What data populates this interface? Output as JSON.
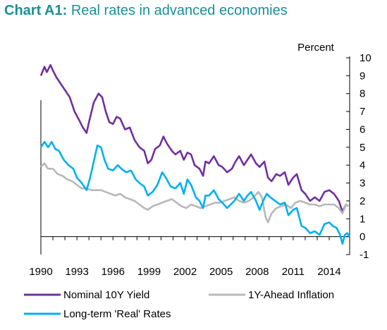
{
  "title": {
    "lead": "Chart A1:",
    "rest": "Real rates in advanced economies"
  },
  "chart_data": {
    "type": "line",
    "unit_label": "Percent",
    "x_range": [
      1990,
      2015.7
    ],
    "x_ticks": [
      "1990",
      "1993",
      "1996",
      "1999",
      "2002",
      "2005",
      "2008",
      "2011",
      "2014"
    ],
    "y_range": [
      -1,
      10
    ],
    "y_ticks": [
      "10",
      "9",
      "8",
      "7",
      "6",
      "5",
      "4",
      "3",
      "2",
      "1",
      "0",
      "-1"
    ],
    "y_axis_side": "right",
    "grid": false,
    "legend_position": "bottom",
    "series": [
      {
        "name": "Nominal 10Y Yield",
        "color": "#7030a0",
        "points": [
          [
            1990.0,
            9.0
          ],
          [
            1990.3,
            9.5
          ],
          [
            1990.5,
            9.2
          ],
          [
            1990.8,
            9.6
          ],
          [
            1991.0,
            9.3
          ],
          [
            1991.3,
            8.9
          ],
          [
            1991.6,
            8.6
          ],
          [
            1992.0,
            8.2
          ],
          [
            1992.4,
            7.8
          ],
          [
            1992.8,
            7.0
          ],
          [
            1993.2,
            6.5
          ],
          [
            1993.5,
            6.1
          ],
          [
            1993.8,
            5.8
          ],
          [
            1994.0,
            6.4
          ],
          [
            1994.4,
            7.5
          ],
          [
            1994.8,
            8.0
          ],
          [
            1995.1,
            7.8
          ],
          [
            1995.4,
            7.0
          ],
          [
            1995.7,
            6.4
          ],
          [
            1996.0,
            6.3
          ],
          [
            1996.3,
            6.7
          ],
          [
            1996.6,
            6.6
          ],
          [
            1997.0,
            6.0
          ],
          [
            1997.4,
            6.1
          ],
          [
            1997.8,
            5.4
          ],
          [
            1998.2,
            5.0
          ],
          [
            1998.6,
            4.8
          ],
          [
            1998.9,
            4.1
          ],
          [
            1999.2,
            4.3
          ],
          [
            1999.5,
            4.9
          ],
          [
            1999.9,
            5.1
          ],
          [
            2000.2,
            5.6
          ],
          [
            2000.5,
            5.2
          ],
          [
            2000.9,
            4.8
          ],
          [
            2001.2,
            4.6
          ],
          [
            2001.6,
            4.8
          ],
          [
            2001.9,
            4.3
          ],
          [
            2002.2,
            4.7
          ],
          [
            2002.5,
            4.6
          ],
          [
            2002.8,
            4.0
          ],
          [
            2003.2,
            3.8
          ],
          [
            2003.5,
            3.4
          ],
          [
            2003.7,
            4.2
          ],
          [
            2004.0,
            4.1
          ],
          [
            2004.4,
            4.5
          ],
          [
            2004.8,
            4.0
          ],
          [
            2005.1,
            3.9
          ],
          [
            2005.5,
            3.6
          ],
          [
            2005.9,
            3.8
          ],
          [
            2006.2,
            4.2
          ],
          [
            2006.5,
            4.5
          ],
          [
            2006.9,
            4.0
          ],
          [
            2007.2,
            4.3
          ],
          [
            2007.5,
            4.6
          ],
          [
            2007.9,
            4.1
          ],
          [
            2008.2,
            3.9
          ],
          [
            2008.6,
            4.2
          ],
          [
            2008.9,
            3.3
          ],
          [
            2009.2,
            3.1
          ],
          [
            2009.6,
            3.5
          ],
          [
            2009.9,
            3.4
          ],
          [
            2010.3,
            3.6
          ],
          [
            2010.6,
            2.9
          ],
          [
            2011.0,
            3.3
          ],
          [
            2011.3,
            3.5
          ],
          [
            2011.7,
            2.6
          ],
          [
            2012.0,
            2.4
          ],
          [
            2012.4,
            2.0
          ],
          [
            2012.8,
            2.2
          ],
          [
            2013.2,
            2.0
          ],
          [
            2013.6,
            2.5
          ],
          [
            2014.0,
            2.6
          ],
          [
            2014.4,
            2.4
          ],
          [
            2014.8,
            2.0
          ],
          [
            2015.1,
            1.4
          ],
          [
            2015.4,
            1.8
          ],
          [
            2015.6,
            1.7
          ]
        ]
      },
      {
        "name": "1Y-Ahead Inflation",
        "color": "#b8b8b8",
        "points": [
          [
            1990.0,
            3.9
          ],
          [
            1990.3,
            4.1
          ],
          [
            1990.6,
            3.8
          ],
          [
            1991.0,
            3.8
          ],
          [
            1991.4,
            3.5
          ],
          [
            1991.8,
            3.4
          ],
          [
            1992.2,
            3.2
          ],
          [
            1992.6,
            3.1
          ],
          [
            1993.0,
            2.9
          ],
          [
            1993.4,
            2.7
          ],
          [
            1993.8,
            2.7
          ],
          [
            1994.2,
            2.6
          ],
          [
            1994.6,
            2.6
          ],
          [
            1995.0,
            2.6
          ],
          [
            1995.4,
            2.5
          ],
          [
            1995.8,
            2.4
          ],
          [
            1996.2,
            2.3
          ],
          [
            1996.6,
            2.4
          ],
          [
            1997.0,
            2.2
          ],
          [
            1997.4,
            2.1
          ],
          [
            1997.8,
            2.0
          ],
          [
            1998.2,
            1.8
          ],
          [
            1998.6,
            1.6
          ],
          [
            1998.9,
            1.5
          ],
          [
            1999.3,
            1.7
          ],
          [
            1999.7,
            1.8
          ],
          [
            2000.1,
            1.9
          ],
          [
            2000.5,
            2.0
          ],
          [
            2000.9,
            2.1
          ],
          [
            2001.3,
            1.9
          ],
          [
            2001.7,
            1.7
          ],
          [
            2002.1,
            1.6
          ],
          [
            2002.5,
            1.8
          ],
          [
            2002.9,
            1.7
          ],
          [
            2003.3,
            1.6
          ],
          [
            2003.7,
            1.7
          ],
          [
            2004.1,
            1.8
          ],
          [
            2004.5,
            1.9
          ],
          [
            2004.9,
            1.9
          ],
          [
            2005.3,
            2.0
          ],
          [
            2005.7,
            2.1
          ],
          [
            2006.1,
            2.2
          ],
          [
            2006.5,
            2.0
          ],
          [
            2006.9,
            1.9
          ],
          [
            2007.3,
            2.0
          ],
          [
            2007.7,
            2.2
          ],
          [
            2008.1,
            2.5
          ],
          [
            2008.4,
            2.2
          ],
          [
            2008.7,
            1.1
          ],
          [
            2008.9,
            0.8
          ],
          [
            2009.2,
            1.3
          ],
          [
            2009.6,
            1.6
          ],
          [
            2010.0,
            1.7
          ],
          [
            2010.4,
            1.8
          ],
          [
            2010.8,
            1.6
          ],
          [
            2011.2,
            1.9
          ],
          [
            2011.6,
            2.0
          ],
          [
            2012.0,
            1.9
          ],
          [
            2012.4,
            1.8
          ],
          [
            2012.8,
            1.8
          ],
          [
            2013.2,
            1.7
          ],
          [
            2013.6,
            1.8
          ],
          [
            2014.0,
            1.8
          ],
          [
            2014.4,
            1.8
          ],
          [
            2014.8,
            1.6
          ],
          [
            2015.1,
            1.3
          ],
          [
            2015.4,
            1.8
          ],
          [
            2015.6,
            1.7
          ]
        ]
      },
      {
        "name": "Long-term 'Real' Rates",
        "color": "#00b0f0",
        "points": [
          [
            1990.0,
            5.0
          ],
          [
            1990.3,
            5.3
          ],
          [
            1990.6,
            5.0
          ],
          [
            1990.9,
            5.3
          ],
          [
            1991.2,
            4.9
          ],
          [
            1991.5,
            4.8
          ],
          [
            1991.9,
            4.3
          ],
          [
            1992.3,
            4.0
          ],
          [
            1992.7,
            3.8
          ],
          [
            1993.0,
            3.3
          ],
          [
            1993.4,
            3.0
          ],
          [
            1993.8,
            2.6
          ],
          [
            1994.1,
            3.3
          ],
          [
            1994.4,
            4.2
          ],
          [
            1994.7,
            5.1
          ],
          [
            1995.0,
            5.0
          ],
          [
            1995.3,
            4.3
          ],
          [
            1995.6,
            3.8
          ],
          [
            1996.0,
            3.7
          ],
          [
            1996.4,
            4.0
          ],
          [
            1996.7,
            3.8
          ],
          [
            1997.1,
            3.6
          ],
          [
            1997.5,
            3.7
          ],
          [
            1997.9,
            3.2
          ],
          [
            1998.2,
            3.0
          ],
          [
            1998.6,
            2.8
          ],
          [
            1998.9,
            2.3
          ],
          [
            1999.3,
            2.5
          ],
          [
            1999.7,
            2.9
          ],
          [
            2000.1,
            3.6
          ],
          [
            2000.4,
            3.3
          ],
          [
            2000.8,
            2.8
          ],
          [
            2001.2,
            2.7
          ],
          [
            2001.6,
            3.0
          ],
          [
            2001.9,
            2.4
          ],
          [
            2002.2,
            3.2
          ],
          [
            2002.5,
            2.9
          ],
          [
            2002.9,
            2.2
          ],
          [
            2003.2,
            2.0
          ],
          [
            2003.5,
            1.6
          ],
          [
            2003.7,
            2.3
          ],
          [
            2004.0,
            2.3
          ],
          [
            2004.4,
            2.6
          ],
          [
            2004.8,
            2.1
          ],
          [
            2005.1,
            1.9
          ],
          [
            2005.5,
            1.6
          ],
          [
            2005.8,
            1.8
          ],
          [
            2006.1,
            2.0
          ],
          [
            2006.5,
            2.4
          ],
          [
            2006.9,
            2.0
          ],
          [
            2007.2,
            2.3
          ],
          [
            2007.5,
            2.5
          ],
          [
            2007.9,
            2.0
          ],
          [
            2008.2,
            1.5
          ],
          [
            2008.5,
            2.0
          ],
          [
            2008.8,
            2.4
          ],
          [
            2009.1,
            2.2
          ],
          [
            2009.5,
            2.0
          ],
          [
            2009.9,
            1.8
          ],
          [
            2010.3,
            1.9
          ],
          [
            2010.6,
            1.2
          ],
          [
            2011.0,
            1.5
          ],
          [
            2011.3,
            1.6
          ],
          [
            2011.7,
            0.6
          ],
          [
            2012.0,
            0.5
          ],
          [
            2012.4,
            0.2
          ],
          [
            2012.8,
            0.3
          ],
          [
            2013.2,
            0.1
          ],
          [
            2013.6,
            0.7
          ],
          [
            2014.0,
            0.8
          ],
          [
            2014.3,
            0.6
          ],
          [
            2014.6,
            0.5
          ],
          [
            2014.9,
            0.1
          ],
          [
            2015.1,
            -0.4
          ],
          [
            2015.3,
            0.1
          ],
          [
            2015.5,
            0.2
          ],
          [
            2015.7,
            0.0
          ]
        ]
      }
    ]
  }
}
